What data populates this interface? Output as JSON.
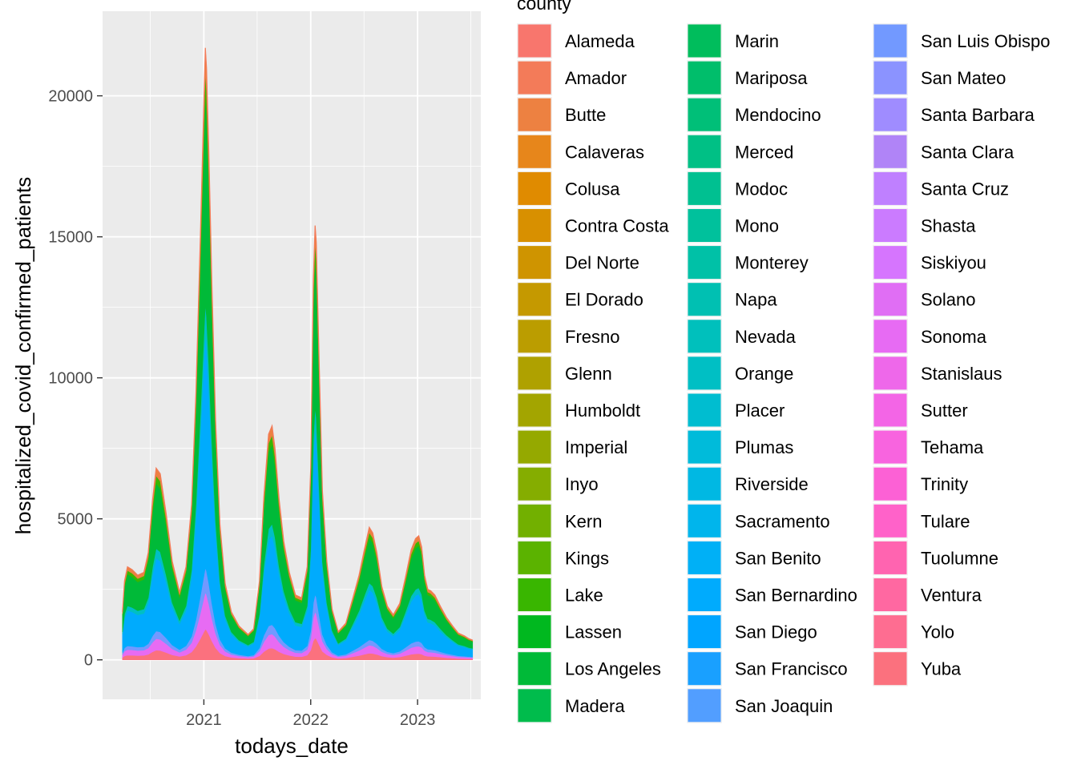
{
  "chart_data": {
    "type": "area",
    "stacked": true,
    "xlabel": "todays_date",
    "ylabel": "hospitalized_covid_confirmed_patients",
    "x_ticks": [
      "2021",
      "2022",
      "2023"
    ],
    "y_ticks": [
      "0",
      "5000",
      "10000",
      "15000",
      "20000"
    ],
    "ylim": [
      -1400,
      23000
    ],
    "xlim": [
      "2020-01-21",
      "2023-08-05"
    ],
    "grid": true,
    "legend_title": "county",
    "legend_position": "right",
    "counties": [
      "Alameda",
      "Amador",
      "Butte",
      "Calaveras",
      "Colusa",
      "Contra Costa",
      "Del Norte",
      "El Dorado",
      "Fresno",
      "Glenn",
      "Humboldt",
      "Imperial",
      "Inyo",
      "Kern",
      "Kings",
      "Lake",
      "Lassen",
      "Los Angeles",
      "Madera",
      "Marin",
      "Mariposa",
      "Mendocino",
      "Merced",
      "Modoc",
      "Mono",
      "Monterey",
      "Napa",
      "Nevada",
      "Orange",
      "Placer",
      "Plumas",
      "Riverside",
      "Sacramento",
      "San Benito",
      "San Bernardino",
      "San Diego",
      "San Francisco",
      "San Joaquin",
      "San Luis Obispo",
      "San Mateo",
      "Santa Barbara",
      "Santa Clara",
      "Santa Cruz",
      "Shasta",
      "Siskiyou",
      "Solano",
      "Sonoma",
      "Stanislaus",
      "Sutter",
      "Tehama",
      "Trinity",
      "Tulare",
      "Tuolumne",
      "Ventura",
      "Yolo",
      "Yuba"
    ],
    "total_series": {
      "x": [
        "2020-03-29",
        "2020-04-05",
        "2020-04-15",
        "2020-05-01",
        "2020-05-20",
        "2020-06-10",
        "2020-06-25",
        "2020-07-10",
        "2020-07-22",
        "2020-08-05",
        "2020-08-25",
        "2020-09-15",
        "2020-10-10",
        "2020-11-01",
        "2020-11-20",
        "2020-12-05",
        "2020-12-20",
        "2021-01-01",
        "2021-01-06",
        "2021-01-10",
        "2021-01-18",
        "2021-01-28",
        "2021-02-10",
        "2021-02-25",
        "2021-03-15",
        "2021-04-05",
        "2021-05-01",
        "2021-06-01",
        "2021-06-20",
        "2021-07-10",
        "2021-07-25",
        "2021-08-10",
        "2021-08-22",
        "2021-09-01",
        "2021-09-15",
        "2021-10-01",
        "2021-10-20",
        "2021-11-10",
        "2021-12-01",
        "2021-12-20",
        "2022-01-01",
        "2022-01-10",
        "2022-01-16",
        "2022-01-20",
        "2022-01-30",
        "2022-02-10",
        "2022-02-25",
        "2022-03-15",
        "2022-04-05",
        "2022-05-01",
        "2022-05-25",
        "2022-06-15",
        "2022-07-05",
        "2022-07-20",
        "2022-08-01",
        "2022-08-15",
        "2022-09-01",
        "2022-09-20",
        "2022-10-10",
        "2022-11-01",
        "2022-11-20",
        "2022-12-10",
        "2022-12-25",
        "2023-01-05",
        "2023-01-15",
        "2023-01-25",
        "2023-02-05",
        "2023-02-15",
        "2023-03-01",
        "2023-03-20",
        "2023-04-10",
        "2023-05-01",
        "2023-05-20",
        "2023-06-10",
        "2023-06-25",
        "2023-07-08"
      ],
      "y": [
        1700,
        2800,
        3300,
        3200,
        3000,
        3100,
        3800,
        5700,
        6800,
        6600,
        5200,
        3500,
        2400,
        3300,
        5500,
        9500,
        15000,
        19800,
        21700,
        21000,
        18000,
        13500,
        8500,
        4800,
        2700,
        1700,
        1200,
        900,
        1100,
        2800,
        5800,
        8000,
        8300,
        7500,
        5700,
        4200,
        3100,
        2300,
        2200,
        3300,
        6800,
        13500,
        15400,
        14800,
        10500,
        6000,
        3500,
        1800,
        1000,
        1300,
        2200,
        3000,
        4000,
        4700,
        4500,
        3800,
        2600,
        1900,
        1600,
        2000,
        2900,
        3900,
        4300,
        4400,
        4000,
        3000,
        2500,
        2450,
        2300,
        1900,
        1500,
        1200,
        950,
        850,
        750,
        700
      ]
    },
    "layer_shares": [
      {
        "county": "Yuba",
        "share": 0.05
      },
      {
        "county": "Sonoma",
        "share": 0.06
      },
      {
        "county": "San Luis Obispo",
        "share": 0.04
      },
      {
        "county": "San Bernardino",
        "share": 0.38
      },
      {
        "county": "Orange",
        "share": 0.05
      },
      {
        "county": "Los Angeles",
        "share": 0.34
      },
      {
        "county": "Lake",
        "share": 0.04
      },
      {
        "county": "Butte",
        "share": 0.04
      }
    ],
    "colors": {
      "panel_bg": "#EBEBEB",
      "grid": "#FFFFFF",
      "Alameda": "#F8766D",
      "Amador": "#F37B59",
      "Butte": "#ED8141",
      "Calaveras": "#E7861B",
      "Colusa": "#E08B00",
      "Contra Costa": "#D89000",
      "Del Norte": "#CF9400",
      "El Dorado": "#C59900",
      "Fresno": "#BB9D00",
      "Glenn": "#AFA100",
      "Humboldt": "#A3A500",
      "Imperial": "#95A900",
      "Inyo": "#85AD00",
      "Kern": "#72B000",
      "Kings": "#5BB300",
      "Lake": "#39B600",
      "Lassen": "#00B81F",
      "Los Angeles": "#00BA38",
      "Madera": "#00BC4C",
      "Marin": "#00BD5C",
      "Mariposa": "#00BE6B",
      "Mendocino": "#00BF78",
      "Merced": "#00C085",
      "Modoc": "#00C091",
      "Mono": "#00C19C",
      "Monterey": "#00C1A7",
      "Napa": "#00C0B2",
      "Nevada": "#00C0BC",
      "Orange": "#00BFC4",
      "Placer": "#00BDD0",
      "Plumas": "#00BBDA",
      "Riverside": "#00B8E3",
      "Sacramento": "#00B5EC",
      "San Benito": "#00B0F6",
      "San Bernardino": "#00ABFD",
      "San Diego": "#00A5FF",
      "San Francisco": "#19A0FF",
      "San Joaquin": "#529EFF",
      "San Luis Obispo": "#7299FF",
      "San Mateo": "#8B93FF",
      "Santa Barbara": "#9F8CFF",
      "Santa Clara": "#B084F7",
      "Santa Cruz": "#BF80FF",
      "Shasta": "#CB7BFF",
      "Siskiyou": "#D675FE",
      "Solano": "#E06EF4",
      "Sonoma": "#E76BF3",
      "Stanislaus": "#EE68EA",
      "Sutter": "#F365E6",
      "Tehama": "#F864DF",
      "Trinity": "#FC61D5",
      "Tulare": "#FF62C9",
      "Tuolumne": "#FF64B0",
      "Ventura": "#FF68A1",
      "Yolo": "#FE6D91",
      "Yuba": "#FB717E"
    }
  }
}
